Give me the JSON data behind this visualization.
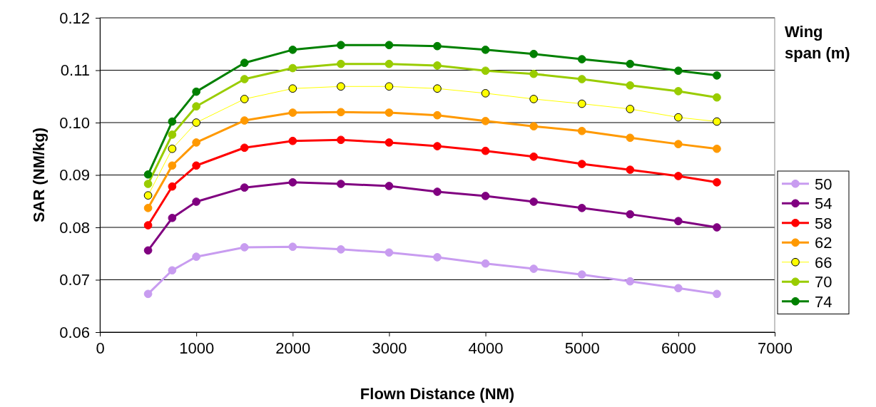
{
  "chart_data": {
    "type": "line",
    "xlabel": "Flown Distance (NM)",
    "ylabel": "SAR (NM/kg)",
    "legend_title": "Wing span (m)",
    "x": [
      500,
      750,
      1000,
      1500,
      2000,
      2500,
      3000,
      3500,
      4000,
      4500,
      5000,
      5500,
      6000,
      6400
    ],
    "xlim": [
      0,
      7000
    ],
    "xticks": [
      0,
      1000,
      2000,
      3000,
      4000,
      5000,
      6000,
      7000
    ],
    "ylim": [
      0.06,
      0.12
    ],
    "yticks": [
      {
        "value": 0.06,
        "label": "0.06"
      },
      {
        "value": 0.07,
        "label": "0.07"
      },
      {
        "value": 0.08,
        "label": "0.08"
      },
      {
        "value": 0.09,
        "label": "0.09"
      },
      {
        "value": 0.1,
        "label": "0.10"
      },
      {
        "value": 0.11,
        "label": "0.11"
      },
      {
        "value": 0.12,
        "label": "0.12"
      }
    ],
    "grid": "y",
    "legend": "right",
    "marker": "circle",
    "series": [
      {
        "name": "50",
        "color": "#c89cf0",
        "values": [
          0.0673,
          0.0718,
          0.0744,
          0.0762,
          0.0763,
          0.0758,
          0.0752,
          0.0743,
          0.0731,
          0.0721,
          0.071,
          0.0697,
          0.0684,
          0.0673
        ]
      },
      {
        "name": "54",
        "color": "#800080",
        "values": [
          0.0756,
          0.0818,
          0.0849,
          0.0876,
          0.0886,
          0.0883,
          0.0879,
          0.0868,
          0.086,
          0.0849,
          0.0837,
          0.0825,
          0.0812,
          0.08
        ]
      },
      {
        "name": "58",
        "color": "#ff0000",
        "values": [
          0.0804,
          0.0878,
          0.0918,
          0.0952,
          0.0965,
          0.0967,
          0.0962,
          0.0955,
          0.0946,
          0.0935,
          0.0921,
          0.091,
          0.0898,
          0.0886
        ]
      },
      {
        "name": "62",
        "color": "#ff9900",
        "values": [
          0.0837,
          0.0918,
          0.0962,
          0.1004,
          0.1019,
          0.102,
          0.1019,
          0.1014,
          0.1003,
          0.0993,
          0.0984,
          0.0971,
          0.0959,
          0.095
        ]
      },
      {
        "name": "66",
        "color": "#ffff00",
        "values": [
          0.0861,
          0.095,
          0.1,
          0.1045,
          0.1065,
          0.1069,
          0.1069,
          0.1065,
          0.1056,
          0.1045,
          0.1036,
          0.1026,
          0.101,
          0.1002
        ]
      },
      {
        "name": "70",
        "color": "#99cc00",
        "values": [
          0.0883,
          0.0977,
          0.1031,
          0.1083,
          0.1104,
          0.1112,
          0.1112,
          0.1109,
          0.1099,
          0.1093,
          0.1083,
          0.1071,
          0.106,
          0.1048
        ]
      },
      {
        "name": "74",
        "color": "#008000",
        "values": [
          0.0901,
          0.1002,
          0.1059,
          0.1114,
          0.1139,
          0.1148,
          0.1148,
          0.1146,
          0.1139,
          0.1131,
          0.1121,
          0.1112,
          0.1099,
          0.109
        ]
      }
    ]
  }
}
